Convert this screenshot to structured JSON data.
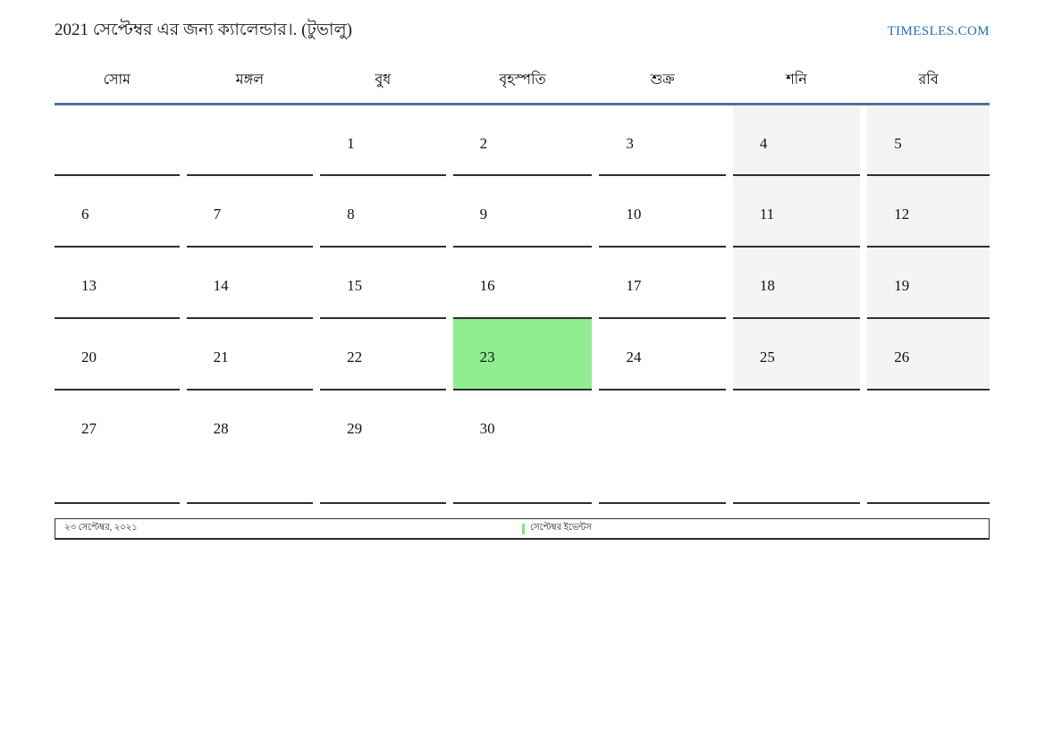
{
  "page": {
    "title": "2021 সেপ্টেম্বর এর জন্য ক্যালেন্ডার।. (টুভালু)",
    "site_link": "TIMESLES.COM"
  },
  "calendar": {
    "weekday_headers": [
      "সোম",
      "মঙ্গল",
      "বুধ",
      "বৃহস্পতি",
      "শুক্র",
      "শনি",
      "রবি"
    ],
    "weeks": [
      [
        "",
        "",
        "1",
        "2",
        "3",
        "4",
        "5"
      ],
      [
        "6",
        "7",
        "8",
        "9",
        "10",
        "11",
        "12"
      ],
      [
        "13",
        "14",
        "15",
        "16",
        "17",
        "18",
        "19"
      ],
      [
        "20",
        "21",
        "22",
        "23",
        "24",
        "25",
        "26"
      ],
      [
        "27",
        "28",
        "29",
        "30",
        "",
        "",
        ""
      ]
    ],
    "highlighted_date": "23"
  },
  "footer": {
    "current_date_label": "২৩ সেপ্টেম্বর, ২০২১",
    "events_label": "সেপ্টেম্বর ইভেন্টস"
  },
  "colors": {
    "highlight_green": "#90ee90",
    "weekend_gray": "#f4f4f4",
    "header_rule_blue": "#54719b",
    "link_blue": "#2a6db0",
    "cell_border_dark": "#2e2e2e",
    "event_marker_green": "#7de87d"
  }
}
